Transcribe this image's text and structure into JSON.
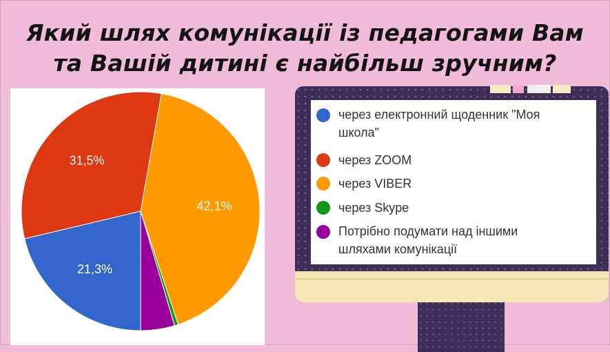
{
  "title": {
    "line1": "Який шлях комунікації із педагогами Вам",
    "line2": "та Вашій дитині є найбільш зручним?"
  },
  "chart_data": {
    "type": "pie",
    "slices": [
      {
        "label": "через електронний щоденник \"Моя школа\"",
        "value": 21.3,
        "display": "21,3%",
        "color": "#3366cc"
      },
      {
        "label": "через ZOOM",
        "value": 31.5,
        "display": "31,5%",
        "color": "#dc3912"
      },
      {
        "label": "через VIBER",
        "value": 42.1,
        "display": "42,1%",
        "color": "#ff9900"
      },
      {
        "label": "через Skype",
        "value": 0.5,
        "display": "",
        "color": "#109618"
      },
      {
        "label": "Потрібно подумати над іншими шляхами комунікації",
        "value": 4.6,
        "display": "",
        "color": "#990099"
      }
    ],
    "legend_position": "right"
  },
  "legend": {
    "items": [
      {
        "line1": "через електронний щоденник \"Моя",
        "line2": "школа\"",
        "color": "#3366cc"
      },
      {
        "line1": "через ZOOM",
        "line2": "",
        "color": "#dc3912"
      },
      {
        "line1": "через VIBER",
        "line2": "",
        "color": "#ff9900"
      },
      {
        "line1": "через Skype",
        "line2": "",
        "color": "#109618"
      },
      {
        "line1": "Потрібно подумати над іншими",
        "line2": "шляхами комунікації",
        "color": "#990099"
      }
    ]
  },
  "colors": {
    "background": "#f1bcd9",
    "monitor": "#3e2e57",
    "monitor_chin": "#f6e6b5"
  }
}
